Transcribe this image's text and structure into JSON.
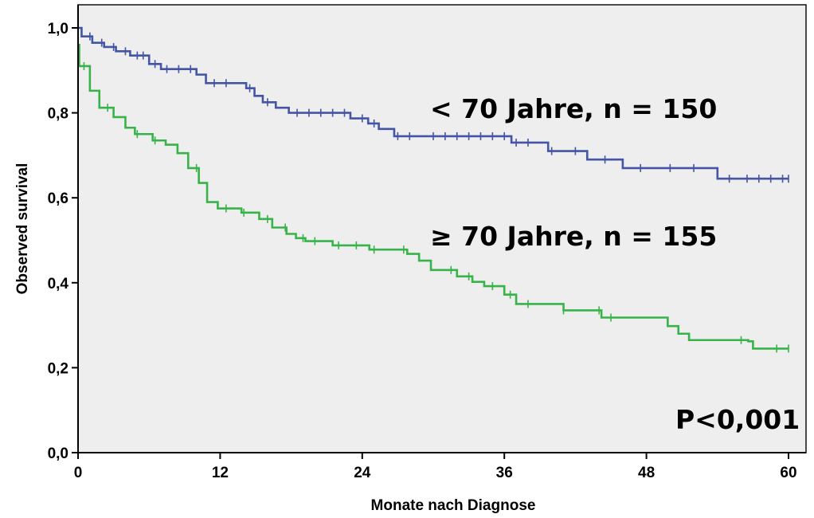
{
  "chart_data": {
    "type": "line",
    "title": "",
    "xlabel": "Monate nach Diagnose",
    "ylabel": "Observed survival",
    "xlim": [
      0,
      61.5
    ],
    "ylim": [
      0,
      1.0
    ],
    "x_ticks": [
      0,
      12,
      24,
      36,
      48,
      60
    ],
    "x_tick_labels": [
      "0",
      "12",
      "24",
      "36",
      "48",
      "60"
    ],
    "y_ticks": [
      0,
      0.2,
      0.4,
      0.6,
      0.8,
      1.0
    ],
    "y_tick_labels": [
      "0,0",
      "0,2",
      "0,4",
      "0,6",
      "0,8",
      "1,0"
    ],
    "grid": false,
    "background": "#eeeeee",
    "series": [
      {
        "color": "#4355a4",
        "steps": [
          [
            0,
            1.0
          ],
          [
            0.3,
            0.98
          ],
          [
            1.2,
            0.965
          ],
          [
            2.2,
            0.955
          ],
          [
            3.2,
            0.945
          ],
          [
            4.4,
            0.935
          ],
          [
            6.0,
            0.915
          ],
          [
            7.0,
            0.903
          ],
          [
            10.0,
            0.89
          ],
          [
            10.8,
            0.87
          ],
          [
            14.2,
            0.858
          ],
          [
            14.9,
            0.84
          ],
          [
            15.6,
            0.825
          ],
          [
            16.7,
            0.812
          ],
          [
            17.8,
            0.8
          ],
          [
            23.0,
            0.787
          ],
          [
            24.5,
            0.775
          ],
          [
            25.4,
            0.762
          ],
          [
            26.7,
            0.745
          ],
          [
            36.6,
            0.73
          ],
          [
            39.7,
            0.71
          ],
          [
            43.0,
            0.69
          ],
          [
            46.0,
            0.67
          ],
          [
            54.0,
            0.645
          ],
          [
            60.0,
            0.645
          ]
        ],
        "censor_x": [
          1.0,
          2.0,
          3.0,
          4.0,
          5.0,
          5.5,
          6.5,
          7.5,
          8.5,
          9.5,
          11.5,
          12.5,
          14.5,
          16.0,
          18.5,
          19.5,
          20.5,
          21.5,
          22.5,
          24.0,
          25.0,
          27.0,
          28.0,
          30.0,
          31.0,
          32.0,
          33.0,
          34.0,
          35.0,
          36.0,
          37.0,
          38.0,
          40.0,
          42.0,
          44.5,
          47.5,
          50.0,
          52.0,
          55.0,
          56.5,
          57.5,
          58.5,
          59.5,
          60.0
        ]
      },
      {
        "color": "#37b349",
        "steps": [
          [
            0,
            0.96
          ],
          [
            0.1,
            0.91
          ],
          [
            1.0,
            0.852
          ],
          [
            1.8,
            0.812
          ],
          [
            3.0,
            0.79
          ],
          [
            4.0,
            0.765
          ],
          [
            4.8,
            0.75
          ],
          [
            6.3,
            0.735
          ],
          [
            7.4,
            0.725
          ],
          [
            8.4,
            0.705
          ],
          [
            9.3,
            0.67
          ],
          [
            10.2,
            0.635
          ],
          [
            10.9,
            0.59
          ],
          [
            11.8,
            0.575
          ],
          [
            13.8,
            0.565
          ],
          [
            15.3,
            0.55
          ],
          [
            16.4,
            0.53
          ],
          [
            17.6,
            0.515
          ],
          [
            18.4,
            0.505
          ],
          [
            19.2,
            0.498
          ],
          [
            21.5,
            0.488
          ],
          [
            24.6,
            0.478
          ],
          [
            27.8,
            0.468
          ],
          [
            28.8,
            0.452
          ],
          [
            29.8,
            0.43
          ],
          [
            32.0,
            0.415
          ],
          [
            33.3,
            0.402
          ],
          [
            34.3,
            0.392
          ],
          [
            36.0,
            0.372
          ],
          [
            37.0,
            0.35
          ],
          [
            41.0,
            0.335
          ],
          [
            44.2,
            0.318
          ],
          [
            49.8,
            0.298
          ],
          [
            50.7,
            0.28
          ],
          [
            51.6,
            0.265
          ],
          [
            56.6,
            0.262
          ],
          [
            57.0,
            0.245
          ],
          [
            60.0,
            0.245
          ]
        ],
        "censor_x": [
          0.5,
          2.5,
          5.0,
          6.5,
          10.0,
          12.5,
          14.0,
          16.0,
          17.5,
          19.0,
          20.0,
          22.0,
          23.5,
          25.0,
          27.5,
          31.5,
          33.0,
          35.0,
          36.5,
          38.0,
          41.0,
          44.0,
          45.0,
          56.0,
          59.0,
          60.0
        ]
      }
    ],
    "annotations": [
      {
        "text": "< 70 Jahre, n = 150"
      },
      {
        "text": "≥ 70 Jahre, n = 155"
      },
      {
        "text": "P<0,001"
      }
    ]
  }
}
